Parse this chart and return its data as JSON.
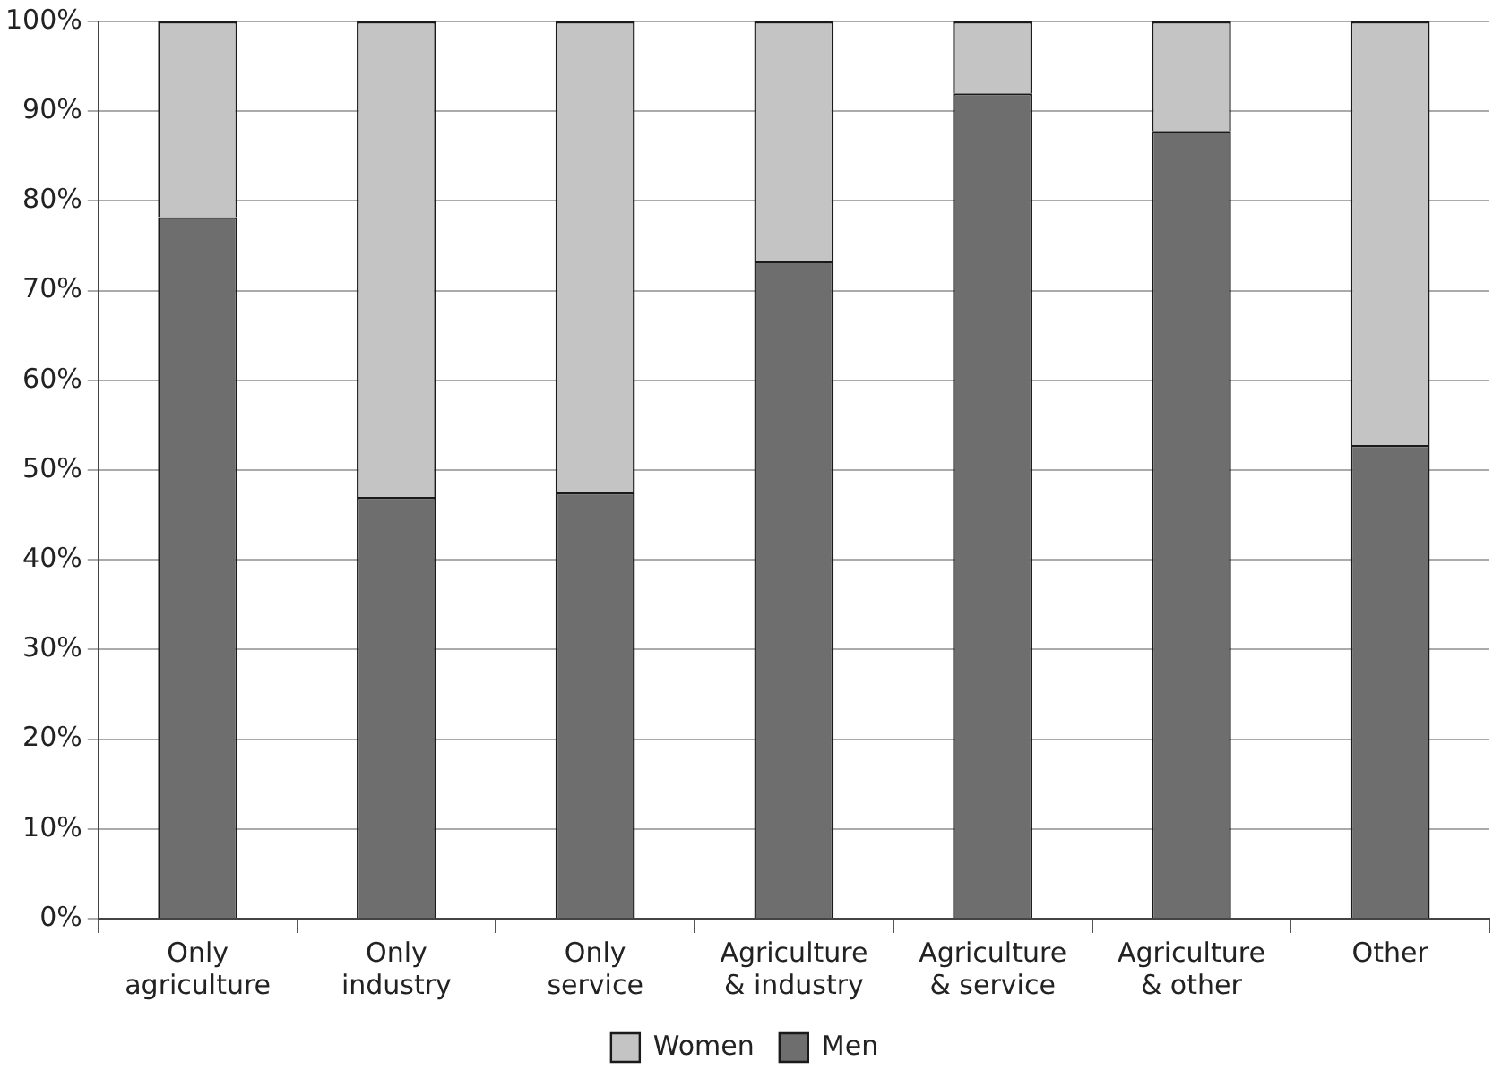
{
  "chart_data": {
    "type": "bar",
    "stacked": true,
    "categories": [
      "Only agriculture",
      "Only industry",
      "Only service",
      "Agriculture & industry",
      "Agriculture & service",
      "Agriculture & other",
      "Other"
    ],
    "series": [
      {
        "name": "Men",
        "color": "#6e6e6e",
        "values": [
          78.2,
          47,
          47.5,
          73.3,
          92,
          87.8,
          52.8
        ]
      },
      {
        "name": "Women",
        "color": "#c4c4c4",
        "values": [
          21.8,
          53,
          52.5,
          26.7,
          8,
          12.2,
          47.2
        ]
      }
    ],
    "ylim": [
      0,
      100
    ],
    "yticks": [
      {
        "value": 0,
        "label": "0%"
      },
      {
        "value": 10,
        "label": "10%"
      },
      {
        "value": 20,
        "label": "20%"
      },
      {
        "value": 30,
        "label": "30%"
      },
      {
        "value": 40,
        "label": "40%"
      },
      {
        "value": 50,
        "label": "50%"
      },
      {
        "value": 60,
        "label": "60%"
      },
      {
        "value": 70,
        "label": "70%"
      },
      {
        "value": 80,
        "label": "80%"
      },
      {
        "value": 90,
        "label": "90%"
      },
      {
        "value": 100,
        "label": "100%"
      }
    ],
    "grid": "y",
    "legend": "bottom"
  }
}
